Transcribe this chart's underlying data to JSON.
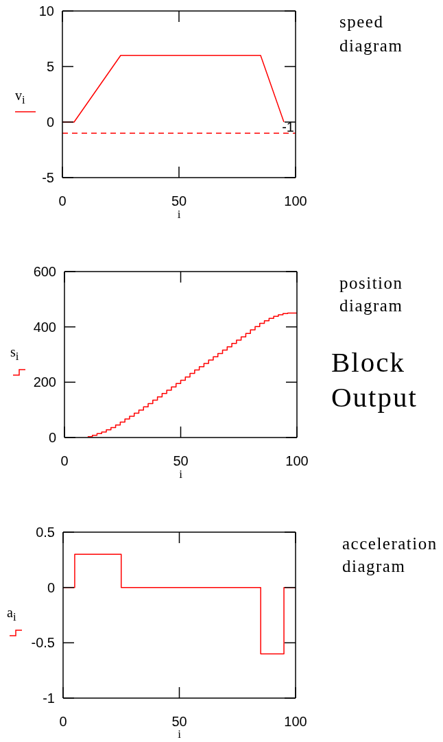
{
  "chart_data": [
    {
      "type": "line",
      "annotations": [
        "speed diagram"
      ],
      "xlabel": "i",
      "xlim": [
        0,
        100
      ],
      "xticks": [
        0,
        50,
        100
      ],
      "ylim": [
        -5,
        10
      ],
      "yticks": [
        -5,
        0,
        5,
        10
      ],
      "legend": "left",
      "marker": "none",
      "series": [
        {
          "name": "v$_{i}$",
          "color": "#ff0000",
          "x": [
            0,
            5,
            25,
            85,
            95
          ],
          "values": [
            0,
            0,
            6,
            6,
            0
          ]
        }
      ],
      "ref_lines": [
        {
          "axis": "y",
          "value": -1,
          "label": "-1",
          "color": "#ff0000",
          "line_style": "dashed"
        }
      ]
    },
    {
      "type": "step",
      "annotations": [
        "position diagram",
        "Block Output"
      ],
      "xlabel": "i",
      "xlim": [
        0,
        100
      ],
      "xticks": [
        0,
        50,
        100
      ],
      "ylim": [
        0,
        600
      ],
      "yticks": [
        0,
        200,
        400,
        600
      ],
      "legend": "left",
      "marker": "none",
      "series": [
        {
          "name": "s$_{i}$",
          "color": "#ff0000",
          "x": [
            10,
            12,
            14,
            16,
            18,
            20,
            22,
            24,
            26,
            28,
            30,
            32,
            34,
            36,
            38,
            40,
            42,
            44,
            46,
            48,
            50,
            52,
            54,
            56,
            58,
            60,
            62,
            64,
            66,
            68,
            70,
            72,
            74,
            76,
            78,
            80,
            82,
            84,
            86,
            88,
            90,
            92,
            94,
            96,
            98,
            100
          ],
          "values": [
            3,
            8,
            14,
            20,
            28,
            36,
            45,
            56,
            67,
            77,
            88,
            99,
            111,
            123,
            135,
            147,
            159,
            171,
            183,
            195,
            207,
            219,
            232,
            244,
            256,
            268,
            280,
            292,
            304,
            316,
            328,
            340,
            352,
            364,
            376,
            389,
            401,
            413,
            422,
            431,
            438,
            444,
            448,
            450,
            450,
            450
          ]
        }
      ]
    },
    {
      "type": "step",
      "annotations": [
        "acceleration diagram"
      ],
      "xlabel": "i",
      "xlim": [
        0,
        100
      ],
      "xticks": [
        0,
        50,
        100
      ],
      "ylim": [
        -1,
        0.5
      ],
      "yticks": [
        -1,
        -0.5,
        0,
        0.5
      ],
      "legend": "left",
      "marker": "none",
      "series": [
        {
          "name": "a$_{i}$",
          "color": "#ff0000",
          "x": [
            0,
            5,
            25,
            85,
            95,
            100
          ],
          "values": [
            0,
            0.3,
            0,
            -0.6,
            0,
            0
          ]
        }
      ]
    }
  ]
}
